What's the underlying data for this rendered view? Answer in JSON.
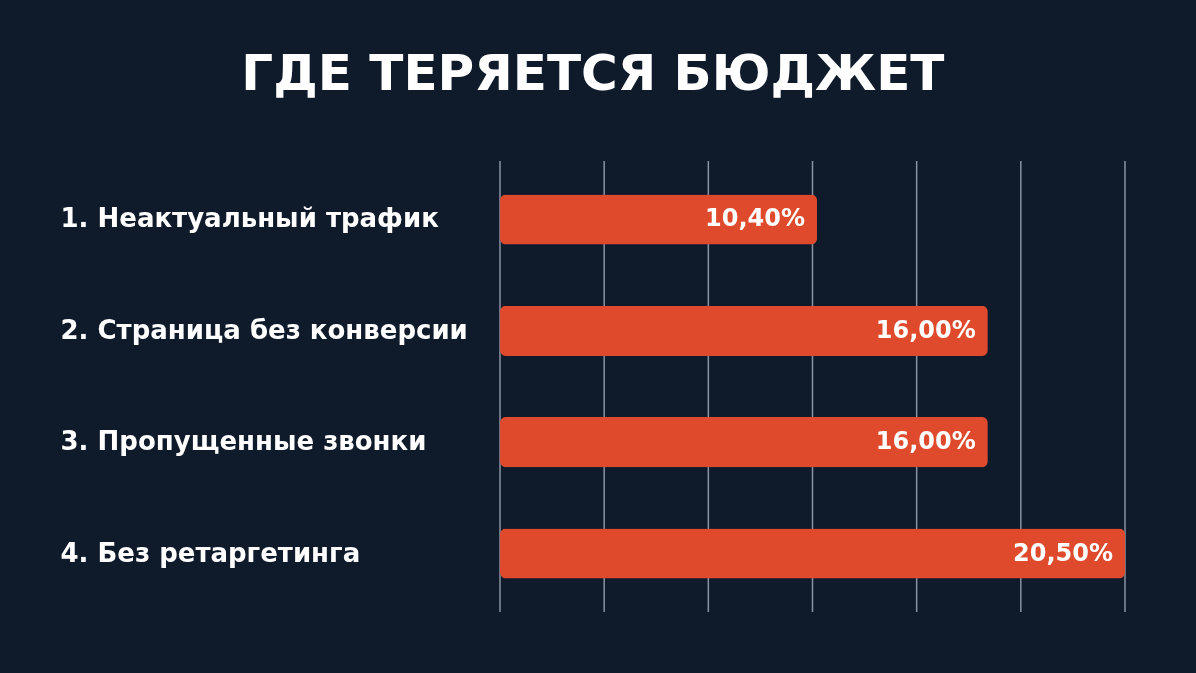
{
  "chart_data": {
    "type": "bar",
    "orientation": "horizontal",
    "title": "ГДЕ ТЕРЯЕТСЯ БЮДЖЕТ",
    "categories": [
      "1. Неактуальный трафик",
      "2. Страница без конверсии",
      "3. Пропущенные звонки",
      "4. Без ретаргетинга"
    ],
    "values": [
      10.4,
      16.0,
      16.0,
      20.5
    ],
    "value_labels": [
      "10,40%",
      "16,00%",
      "16,00%",
      "20,50%"
    ],
    "color": "#e04a2c",
    "grid": "x"
  }
}
